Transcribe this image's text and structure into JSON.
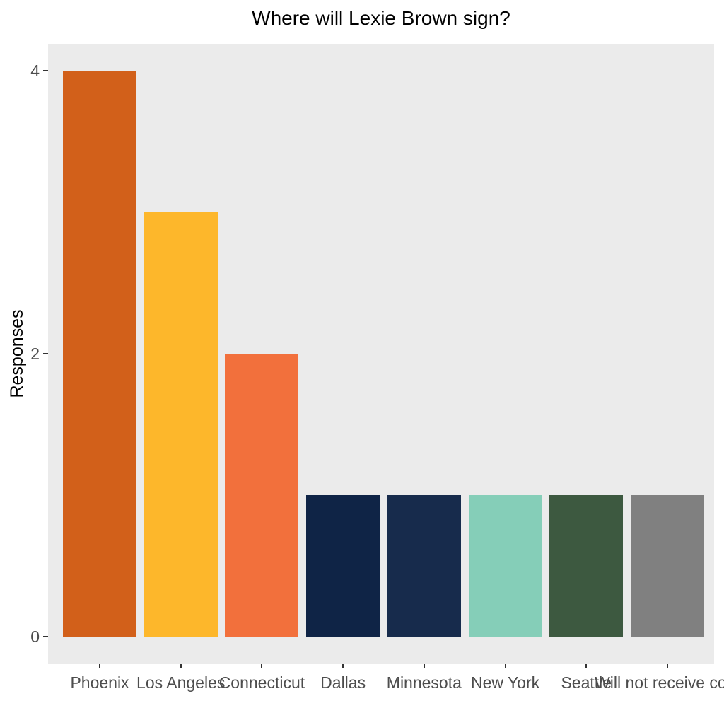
{
  "chart_data": {
    "type": "bar",
    "title": "Where will Lexie Brown sign?",
    "xlabel": "",
    "ylabel": "Responses",
    "categories": [
      "Phoenix",
      "Los Angeles",
      "Connecticut",
      "Dallas",
      "Minnesota",
      "New York",
      "Seattle",
      "Will not receive cont"
    ],
    "values": [
      4,
      3,
      2,
      1,
      1,
      1,
      1,
      1
    ],
    "series": [
      {
        "name": "Responses",
        "values": [
          4,
          3,
          2,
          1,
          1,
          1,
          1,
          1
        ]
      }
    ],
    "bar_colors": [
      "#D2601A",
      "#FDB72B",
      "#F2703C",
      "#0F2446",
      "#172B4C",
      "#85CEB8",
      "#3D5940",
      "#808080"
    ],
    "yticks": [
      0,
      2,
      4
    ],
    "ylim": [
      0,
      4.19
    ],
    "grid": false,
    "legend_position": "none",
    "panel_background": "#EBEBEB",
    "background": "#FFFFFF",
    "axis_tick_color": "#333333",
    "tick_label_color": "#4D4D4D",
    "title_color": "#000000"
  }
}
